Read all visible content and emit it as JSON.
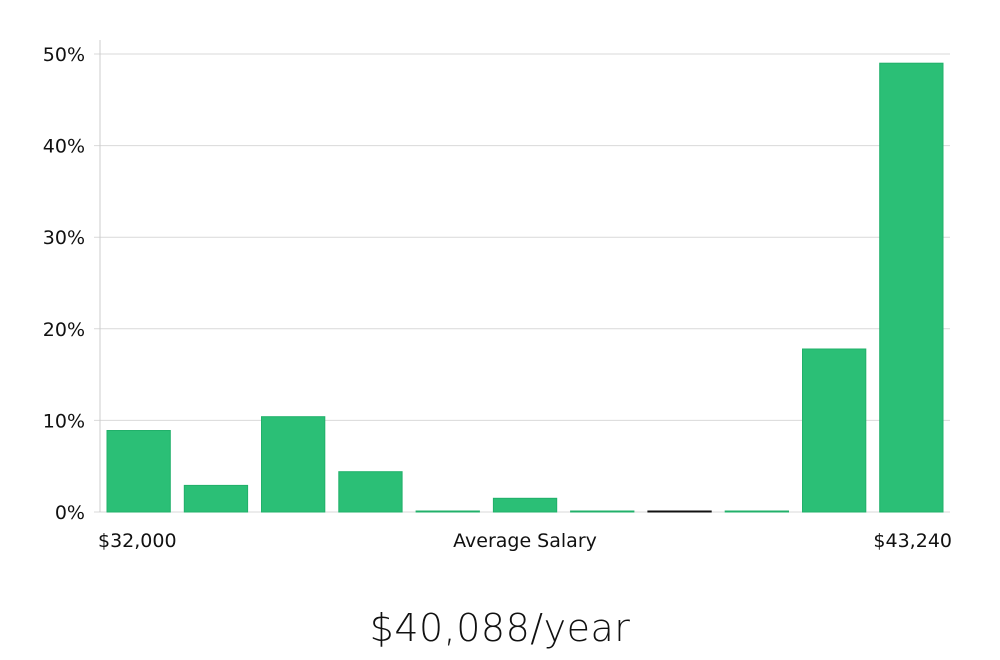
{
  "chart_data": {
    "type": "bar",
    "y_tick_labels": [
      "0%",
      "10%",
      "20%",
      "30%",
      "40%",
      "50%"
    ],
    "ylim": [
      0,
      50
    ],
    "grid": true,
    "values": [
      8.9,
      2.9,
      10.4,
      4.4,
      0.1,
      1.5,
      0.1,
      0.1,
      0.1,
      17.8,
      49.0
    ],
    "x_start_label": "$32,000",
    "x_end_label": "$43,240",
    "xlabel": "Average Salary",
    "colors": {
      "bar": "#2bbf76",
      "bar_stroke": "#21b06a",
      "highlight_bar": "#111111",
      "grid": "#d9d9d9",
      "axis": "#cccccc"
    },
    "highlight_index": 7
  },
  "salary_display": "$40,088/year"
}
